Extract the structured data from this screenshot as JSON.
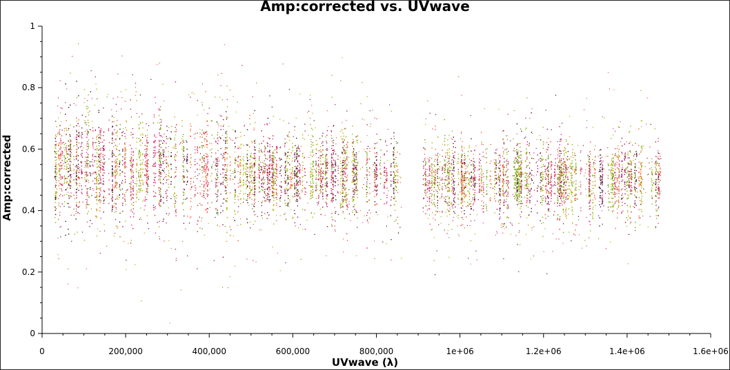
{
  "chart_data": {
    "type": "scatter",
    "title": "Amp:corrected vs. UVwave",
    "xlabel": "UVwave (λ)",
    "ylabel": "Amp:corrected",
    "xlim": [
      0,
      1600000
    ],
    "ylim": [
      0,
      1
    ],
    "x_ticks": [
      0,
      200000,
      400000,
      600000,
      800000,
      1000000,
      1200000,
      1400000,
      1600000
    ],
    "x_tick_labels": [
      "0",
      "200,000",
      "400,000",
      "600,000",
      "800,000",
      "1e+06",
      "1.2e+06",
      "1.4e+06",
      "1.6e+06"
    ],
    "y_ticks": [
      0,
      0.2,
      0.4,
      0.6,
      0.8,
      1
    ],
    "y_tick_labels": [
      "0",
      "0.2",
      "0.4",
      "0.6",
      "0.8",
      "1"
    ],
    "grid": false,
    "colors": [
      "#8ab800",
      "#b0b000",
      "#d81e5b",
      "#8b0a4a",
      "#ff5a2a",
      "#3a0a2a",
      "#6aa000",
      "#e0407a"
    ],
    "clusters": [
      {
        "x_range": [
          30000,
          460000
        ],
        "y_center": 0.54,
        "y_spread": 0.15
      },
      {
        "x_range": [
          460000,
          860000
        ],
        "y_center": 0.52,
        "y_spread": 0.11
      },
      {
        "x_range": [
          910000,
          1480000
        ],
        "y_center": 0.5,
        "y_spread": 0.1
      }
    ]
  }
}
